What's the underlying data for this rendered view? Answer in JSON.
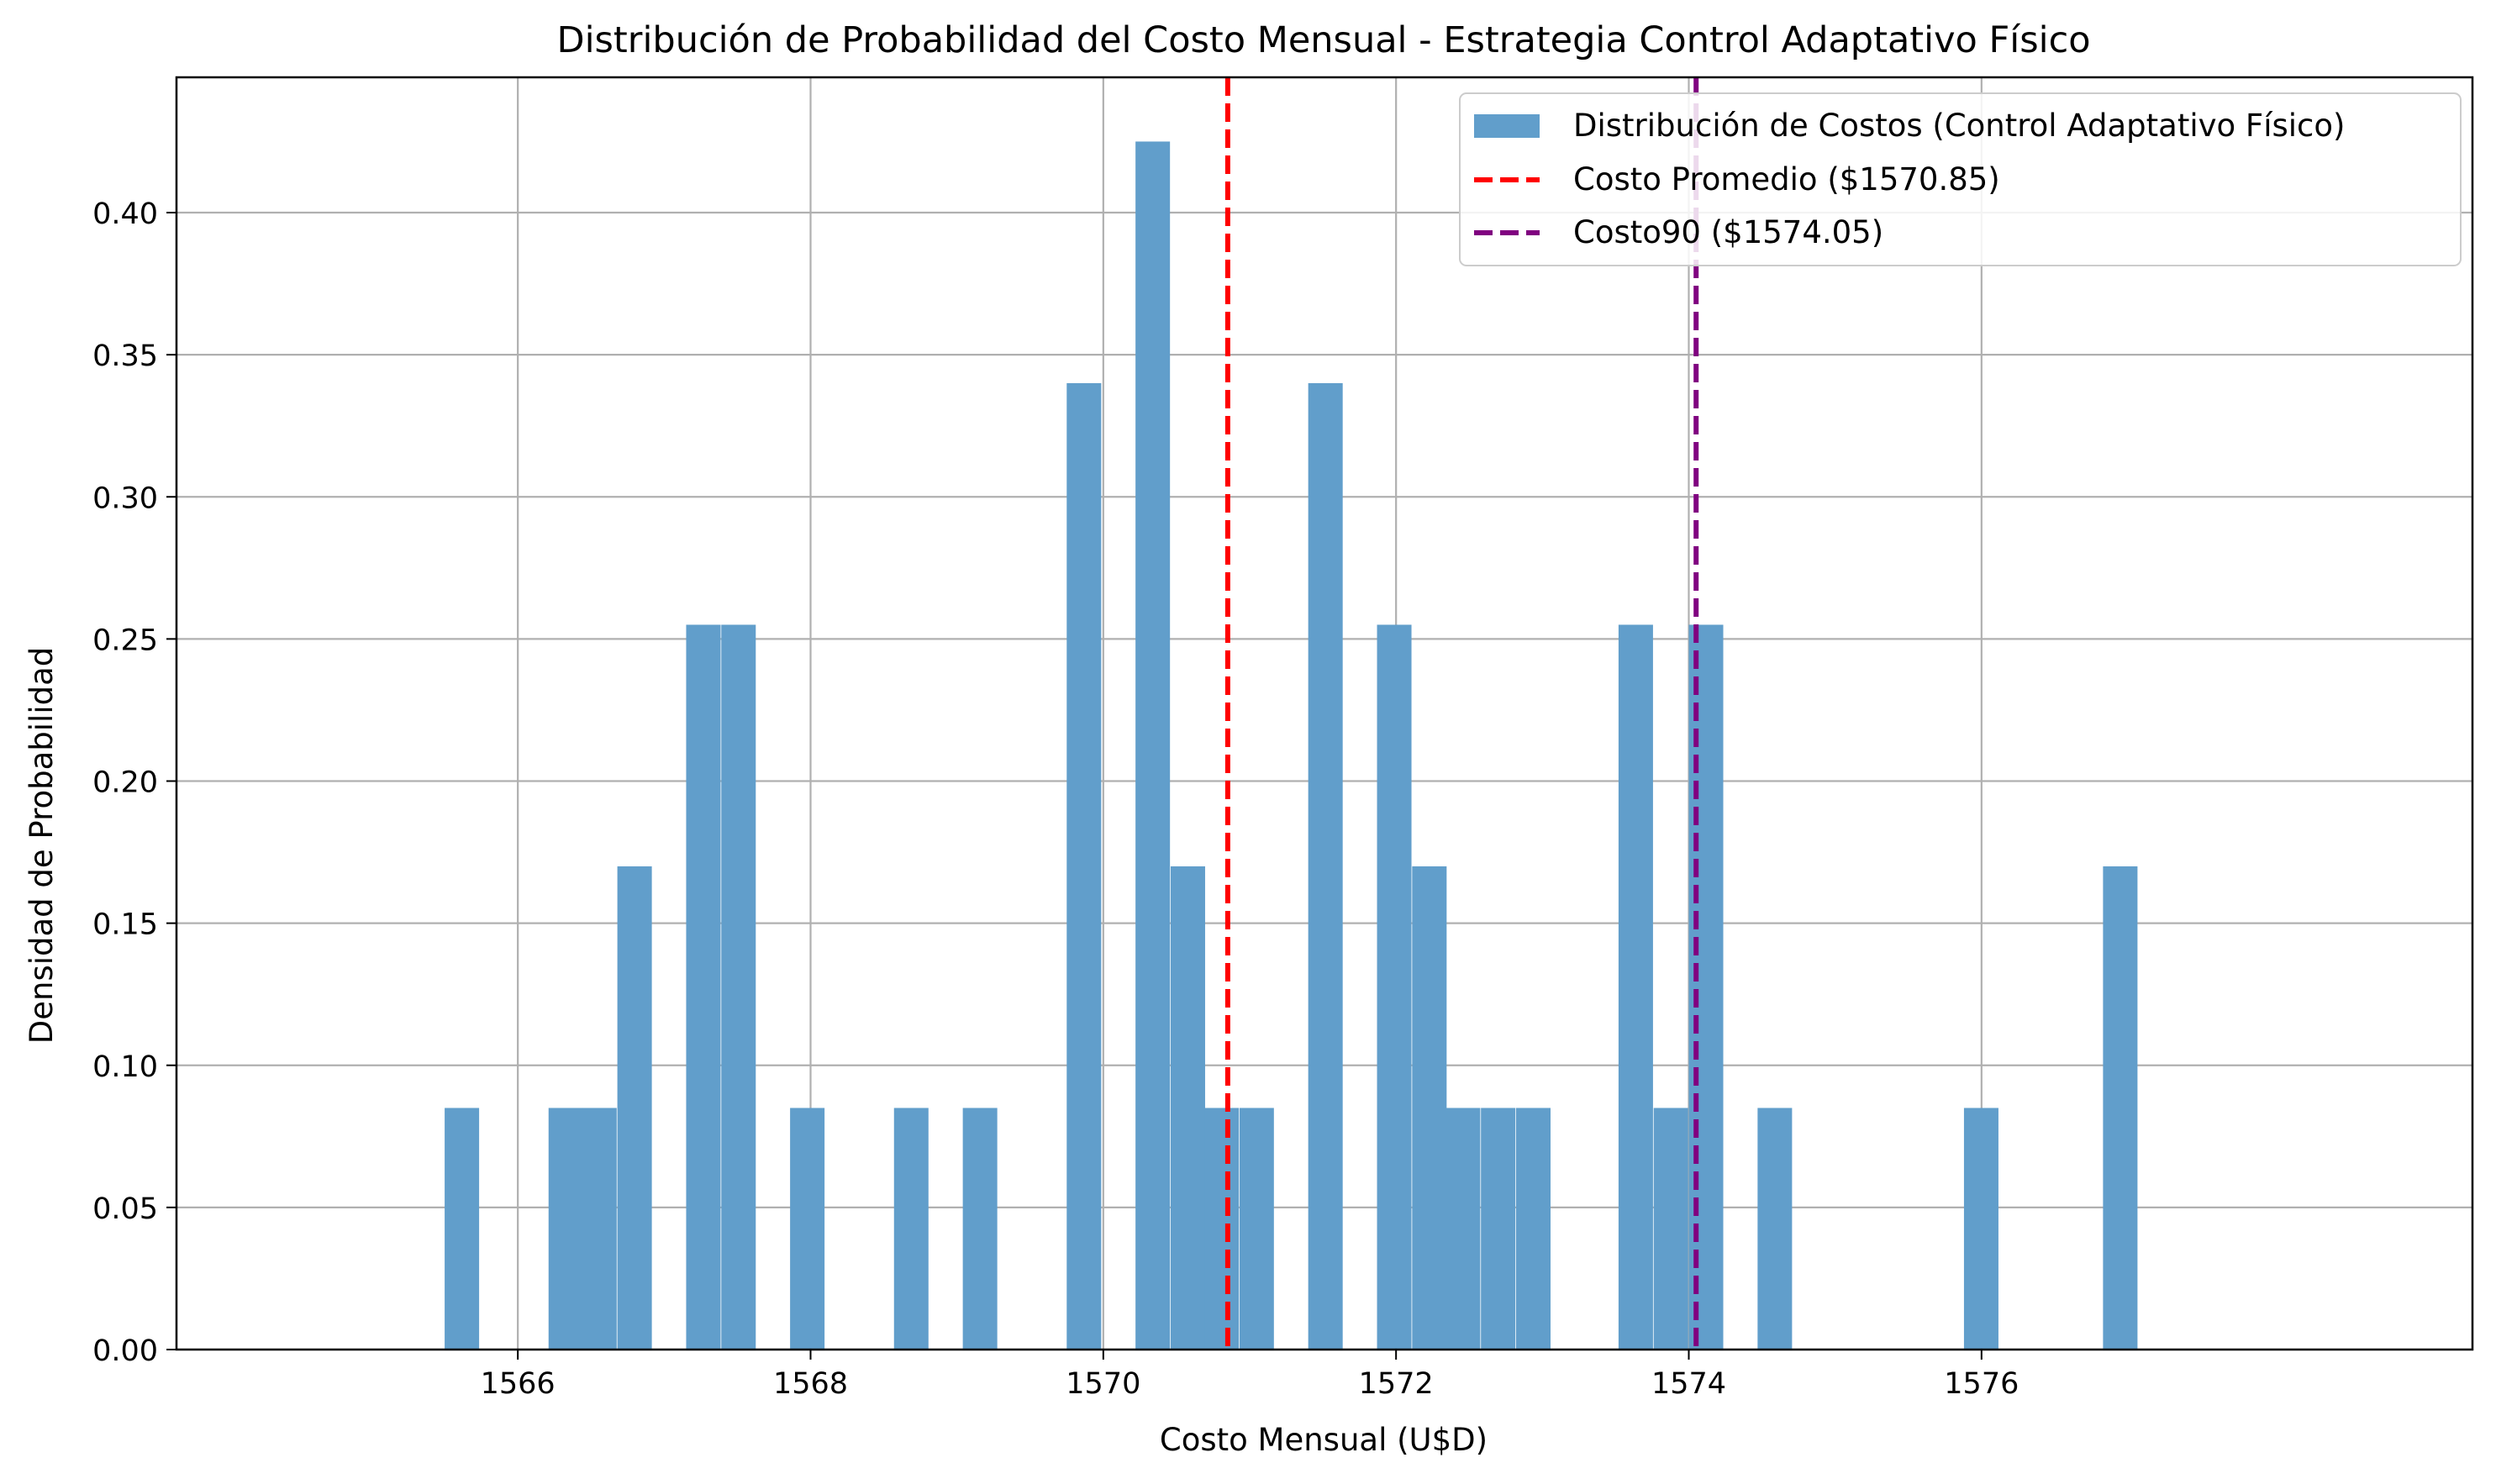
{
  "chart_data": {
    "type": "bar",
    "subtype": "histogram",
    "title": "Distribución de Probabilidad del Costo Mensual - Estrategia Control Adaptativo Físico",
    "xlabel": "Costo Mensual (U$D)",
    "ylabel": "Densidad de Probabilidad",
    "xlim": [
      1564.8,
      1577.9
    ],
    "ylim": [
      0,
      0.445
    ],
    "xticks": [
      "1566",
      "1568",
      "1570",
      "1572",
      "1574",
      "1576"
    ],
    "xtick_values": [
      1566,
      1568,
      1570,
      1572,
      1574,
      1576
    ],
    "yticks": [
      "0.00",
      "0.05",
      "0.10",
      "0.15",
      "0.20",
      "0.25",
      "0.30",
      "0.35",
      "0.40"
    ],
    "ytick_values": [
      0,
      0.05,
      0.1,
      0.15,
      0.2,
      0.25,
      0.3,
      0.35,
      0.4
    ],
    "grid": true,
    "legend_position": "top-right",
    "series": [
      {
        "name": "Distribución de Costos (Control Adaptativo Físico)",
        "kind": "histogram",
        "color": "#619ecb",
        "bin_width": 0.2355,
        "bins": [
          {
            "x0": 1565.5,
            "value": 0.085
          },
          {
            "x0": 1566.21,
            "value": 0.085
          },
          {
            "x0": 1566.44,
            "value": 0.085
          },
          {
            "x0": 1566.68,
            "value": 0.17
          },
          {
            "x0": 1567.15,
            "value": 0.255
          },
          {
            "x0": 1567.39,
            "value": 0.255
          },
          {
            "x0": 1567.86,
            "value": 0.085
          },
          {
            "x0": 1568.57,
            "value": 0.085
          },
          {
            "x0": 1569.04,
            "value": 0.085
          },
          {
            "x0": 1569.75,
            "value": 0.34
          },
          {
            "x0": 1570.22,
            "value": 0.425
          },
          {
            "x0": 1570.46,
            "value": 0.17
          },
          {
            "x0": 1570.69,
            "value": 0.085
          },
          {
            "x0": 1570.93,
            "value": 0.085
          },
          {
            "x0": 1571.4,
            "value": 0.34
          },
          {
            "x0": 1571.87,
            "value": 0.255
          },
          {
            "x0": 1572.11,
            "value": 0.17
          },
          {
            "x0": 1572.34,
            "value": 0.085
          },
          {
            "x0": 1572.58,
            "value": 0.085
          },
          {
            "x0": 1572.82,
            "value": 0.085
          },
          {
            "x0": 1573.52,
            "value": 0.255
          },
          {
            "x0": 1573.76,
            "value": 0.085
          },
          {
            "x0": 1574.0,
            "value": 0.255
          },
          {
            "x0": 1574.47,
            "value": 0.085
          },
          {
            "x0": 1575.88,
            "value": 0.085
          },
          {
            "x0": 1576.83,
            "value": 0.17
          }
        ]
      },
      {
        "name": "Costo Promedio ($1570.85)",
        "kind": "vline",
        "x": 1570.85,
        "color": "#ff0000",
        "style": "dashed"
      },
      {
        "name": "Costo90 ($1574.05)",
        "kind": "vline",
        "x": 1574.05,
        "color": "#800080",
        "style": "dashed"
      }
    ]
  }
}
